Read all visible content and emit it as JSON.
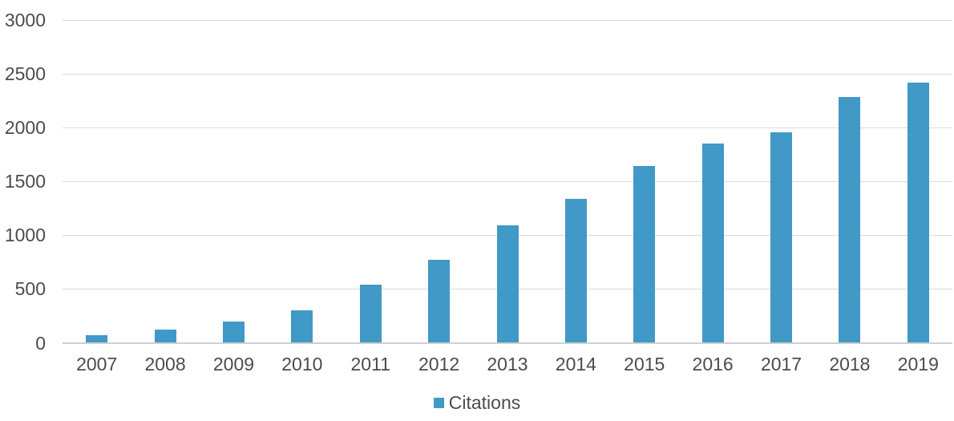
{
  "chart_data": {
    "type": "bar",
    "title": "",
    "xlabel": "",
    "ylabel": "",
    "categories": [
      "2007",
      "2008",
      "2009",
      "2010",
      "2011",
      "2012",
      "2013",
      "2014",
      "2015",
      "2016",
      "2017",
      "2018",
      "2019"
    ],
    "series": [
      {
        "name": "Citations",
        "color": "#4099C6",
        "values": [
          70,
          125,
          200,
          305,
          540,
          775,
          1095,
          1340,
          1645,
          1850,
          1955,
          2285,
          2415
        ]
      }
    ],
    "ylim": [
      0,
      3000
    ],
    "yticks": [
      0,
      500,
      1000,
      1500,
      2000,
      2500,
      3000
    ],
    "grid": true,
    "legend_position": "bottom",
    "colors": {
      "gridline": "#DBDBDB",
      "axis_line": "#CFCFCF",
      "tick_text": "#4C4C4C",
      "background": "#FFFFFF"
    }
  }
}
